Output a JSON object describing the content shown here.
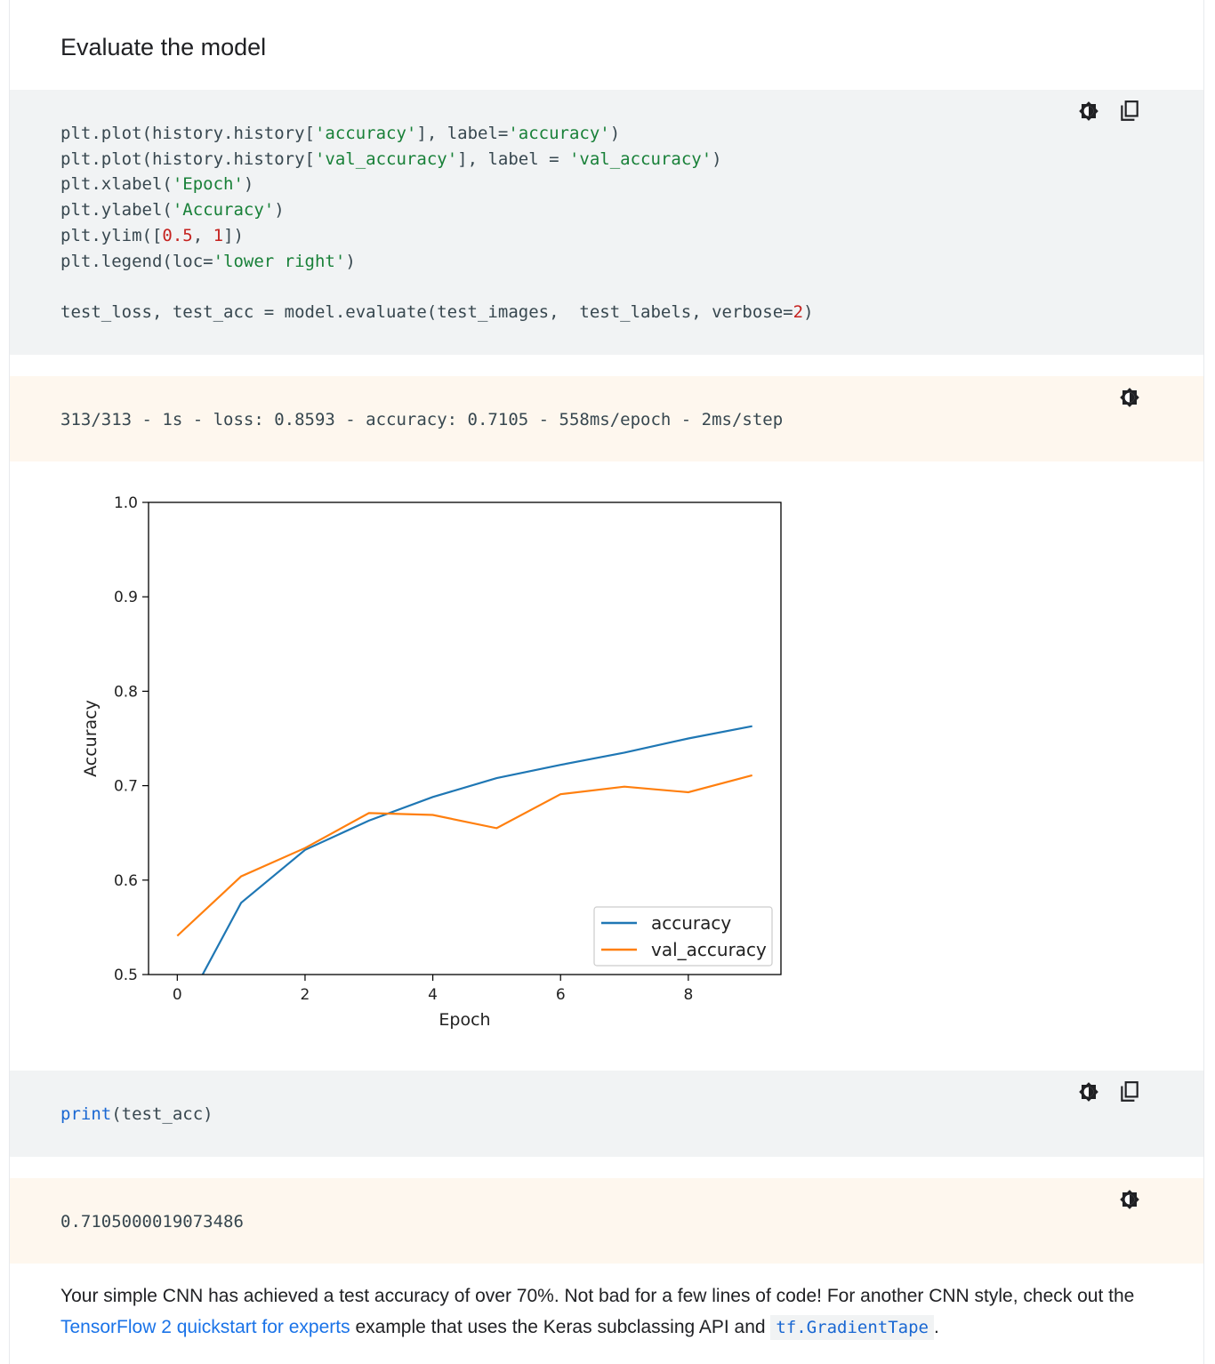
{
  "heading": "Evaluate the model",
  "code_block_1": {
    "lines": [
      [
        {
          "t": "plt.plot(history.history[",
          "c": ""
        },
        {
          "t": "'accuracy'",
          "c": "str"
        },
        {
          "t": "], label=",
          "c": ""
        },
        {
          "t": "'accuracy'",
          "c": "str"
        },
        {
          "t": ")",
          "c": ""
        }
      ],
      [
        {
          "t": "plt.plot(history.history[",
          "c": ""
        },
        {
          "t": "'val_accuracy'",
          "c": "str"
        },
        {
          "t": "], label = ",
          "c": ""
        },
        {
          "t": "'val_accuracy'",
          "c": "str"
        },
        {
          "t": ")",
          "c": ""
        }
      ],
      [
        {
          "t": "plt.xlabel(",
          "c": ""
        },
        {
          "t": "'Epoch'",
          "c": "str"
        },
        {
          "t": ")",
          "c": ""
        }
      ],
      [
        {
          "t": "plt.ylabel(",
          "c": ""
        },
        {
          "t": "'Accuracy'",
          "c": "str"
        },
        {
          "t": ")",
          "c": ""
        }
      ],
      [
        {
          "t": "plt.ylim([",
          "c": ""
        },
        {
          "t": "0.5",
          "c": "num"
        },
        {
          "t": ", ",
          "c": ""
        },
        {
          "t": "1",
          "c": "num"
        },
        {
          "t": "])",
          "c": ""
        }
      ],
      [
        {
          "t": "plt.legend(loc=",
          "c": ""
        },
        {
          "t": "'lower right'",
          "c": "str"
        },
        {
          "t": ")",
          "c": ""
        }
      ],
      [
        {
          "t": "",
          "c": ""
        }
      ],
      [
        {
          "t": "test_loss, test_acc = model.evaluate(test_images,  test_labels, verbose=",
          "c": ""
        },
        {
          "t": "2",
          "c": "num"
        },
        {
          "t": ")",
          "c": ""
        }
      ]
    ]
  },
  "output_1": "313/313 - 1s - loss: 0.8593 - accuracy: 0.7105 - 558ms/epoch - 2ms/step",
  "code_block_2": {
    "lines": [
      [
        {
          "t": "print",
          "c": "fn"
        },
        {
          "t": "(test_acc)",
          "c": ""
        }
      ]
    ]
  },
  "output_2": "0.7105000019073486",
  "paragraph": {
    "before": "Your simple CNN has achieved a test accuracy of over 70%. Not bad for a few lines of code! For another CNN style, check out the ",
    "link": "TensorFlow 2 quickstart for experts",
    "middle": " example that uses the Keras subclassing API and ",
    "code": "tf.GradientTape",
    "after": "."
  },
  "icons": {
    "theme": "theme-toggle-icon",
    "copy": "copy-icon"
  },
  "chart_data": {
    "type": "line",
    "xlabel": "Epoch",
    "ylabel": "Accuracy",
    "xlim": [
      -0.45,
      9.45
    ],
    "ylim": [
      0.5,
      1.0
    ],
    "xticks": [
      0,
      2,
      4,
      6,
      8
    ],
    "yticks": [
      0.5,
      0.6,
      0.7,
      0.8,
      0.9,
      1.0
    ],
    "legend_position": "lower right",
    "grid": false,
    "x": [
      0,
      1,
      2,
      3,
      4,
      5,
      6,
      7,
      8,
      9
    ],
    "series": [
      {
        "name": "accuracy",
        "color": "#1f77b4",
        "values": [
          0.45,
          0.576,
          0.632,
          0.663,
          0.688,
          0.708,
          0.722,
          0.735,
          0.75,
          0.763
        ]
      },
      {
        "name": "val_accuracy",
        "color": "#ff7f0e",
        "values": [
          0.541,
          0.604,
          0.634,
          0.671,
          0.669,
          0.655,
          0.691,
          0.699,
          0.693,
          0.711
        ]
      }
    ]
  }
}
